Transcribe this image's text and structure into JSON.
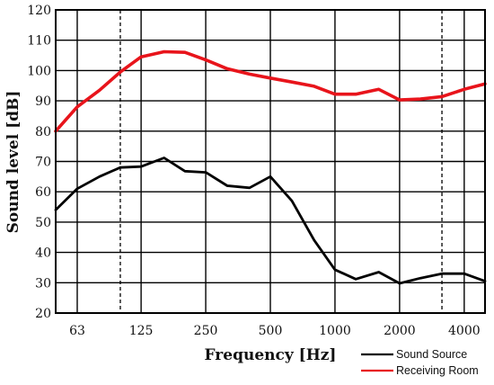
{
  "chart_data": {
    "type": "line",
    "title": "",
    "xlabel": "Frequency [Hz]",
    "ylabel": "Sound level [dB]",
    "x_scale": "log",
    "xlim": [
      50,
      5000
    ],
    "ylim": [
      20,
      120
    ],
    "grid": true,
    "legend_position": "bottom-right",
    "x_tick_labels": [
      {
        "value": 63,
        "label": "63"
      },
      {
        "value": 125,
        "label": "125"
      },
      {
        "value": 250,
        "label": "250"
      },
      {
        "value": 500,
        "label": "500"
      },
      {
        "value": 1000,
        "label": "1000"
      },
      {
        "value": 2000,
        "label": "2000"
      },
      {
        "value": 4000,
        "label": "4000"
      }
    ],
    "x_gridlines_dashed": [
      100,
      3150
    ],
    "y_ticks": [
      20,
      30,
      40,
      50,
      60,
      70,
      80,
      90,
      100,
      110,
      120
    ],
    "x": [
      50,
      63,
      80,
      100,
      125,
      160,
      200,
      250,
      315,
      400,
      500,
      630,
      800,
      1000,
      1250,
      1600,
      2000,
      2500,
      3150,
      4000,
      5000
    ],
    "series": [
      {
        "name": "Sound Source",
        "color": "#000000",
        "values": [
          54,
          61,
          65,
          68,
          68.3,
          71.2,
          66.8,
          66.4,
          62,
          61.3,
          65,
          57,
          44,
          34.3,
          31.2,
          33.5,
          29.8,
          31.5,
          33,
          33,
          30.5
        ]
      },
      {
        "name": "Receiving Room",
        "color": "#e8141b",
        "values": [
          80,
          88,
          93.5,
          99.5,
          104.5,
          106.2,
          106,
          103.5,
          100.6,
          98.8,
          97.5,
          96.2,
          94.8,
          92.2,
          92.2,
          93.8,
          90.3,
          90.6,
          91.4,
          93.8,
          95.6
        ]
      }
    ]
  }
}
